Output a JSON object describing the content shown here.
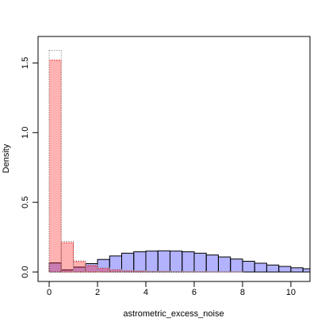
{
  "chart_data": {
    "type": "histogram",
    "xlabel": "astrometric_excess_noise",
    "ylabel": "Density",
    "bins": [
      0,
      0.5,
      1,
      1.5,
      2,
      2.5,
      3,
      3.5,
      4,
      4.5,
      5,
      5.5,
      6,
      6.5,
      7,
      7.5,
      8,
      8.5,
      9,
      9.5,
      10,
      10.5,
      11
    ],
    "series": [
      {
        "color": "#0000ff",
        "border": "#000000",
        "linestyle": "solid",
        "fill_opacity": 0.3,
        "values": [
          0.065,
          0.015,
          0.035,
          0.06,
          0.09,
          0.115,
          0.135,
          0.145,
          0.15,
          0.152,
          0.15,
          0.145,
          0.135,
          0.122,
          0.108,
          0.093,
          0.077,
          0.063,
          0.05,
          0.04,
          0.03,
          0.023
        ]
      },
      {
        "color": "#ff0000",
        "border": "#ff0000",
        "linestyle": "dotted",
        "fill_opacity": 0.3,
        "values": [
          1.52,
          0.21,
          0.075,
          0.045,
          0.025,
          0.015,
          0.01,
          0.008,
          0.005,
          0.004,
          0.003,
          0.002,
          0.002,
          0.001,
          0.001,
          0.001,
          0,
          0,
          0,
          0,
          0,
          0
        ]
      },
      {
        "color": "none",
        "border": "#999999",
        "linestyle": "dotted",
        "fill_opacity": 0,
        "values": [
          1.59,
          0.22,
          0.08,
          0.05,
          0.03,
          0.018,
          0.012,
          0.009,
          0.006,
          0.005,
          0.004,
          0.003,
          0.002,
          0.002,
          0.001,
          0.001,
          0,
          0,
          0,
          0,
          0,
          0
        ]
      }
    ],
    "xlim": [
      -0.46,
      10.79
    ],
    "ylim": [
      -0.068,
      1.69
    ],
    "xticks": [
      0,
      2,
      4,
      6,
      8,
      10
    ],
    "yticks": [
      {
        "value": 0,
        "label": "0.0"
      },
      {
        "value": 0.5,
        "label": "0.5"
      },
      {
        "value": 1,
        "label": "1.0"
      },
      {
        "value": 1.5,
        "label": "1.5"
      }
    ]
  }
}
